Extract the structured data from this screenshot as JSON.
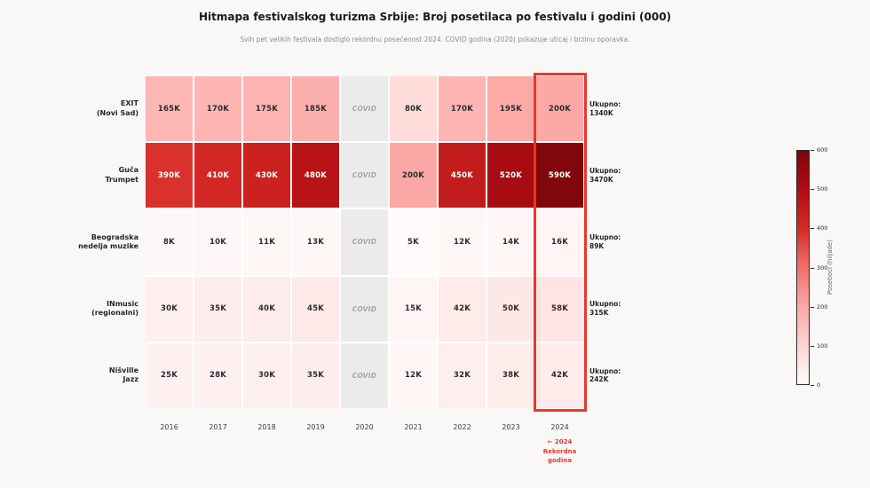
{
  "title": "Hitmapa festivalskog turizma Srbije: Broj posetilaca po festivalu i godini (000)",
  "subtitle": "Svih pet velikih festivala dostiglo rekordnu posećenost 2024. COVID godina (2020) pokazuje uticaj i brzinu oporavka.",
  "chart_data": {
    "type": "heatmap",
    "x_labels": [
      "2016",
      "2017",
      "2018",
      "2019",
      "2020",
      "2021",
      "2022",
      "2023",
      "2024"
    ],
    "value_suffix": "K",
    "covid_year": "2020",
    "covid_label": "COVID",
    "rows": [
      {
        "label": "EXIT\n(Novi Sad)",
        "values": [
          165,
          170,
          175,
          185,
          null,
          80,
          170,
          195,
          200
        ],
        "total": "Ukupno:\n1340K"
      },
      {
        "label": "Guča\nTrumpet",
        "values": [
          390,
          410,
          430,
          480,
          null,
          200,
          450,
          520,
          590
        ],
        "total": "Ukupno:\n3470K"
      },
      {
        "label": "Beogradska\nnedelja muzike",
        "values": [
          8,
          10,
          11,
          13,
          null,
          5,
          12,
          14,
          16
        ],
        "total": "Ukupno:\n89K"
      },
      {
        "label": "INmusic\n(regionalni)",
        "values": [
          30,
          35,
          40,
          45,
          null,
          15,
          42,
          50,
          58
        ],
        "total": "Ukupno:\n315K"
      },
      {
        "label": "Nišville\nJazz",
        "values": [
          25,
          28,
          30,
          35,
          null,
          12,
          32,
          38,
          42
        ],
        "total": "Ukupno:\n242K"
      }
    ],
    "highlight": {
      "column": "2024",
      "annotation": "← 2024\nRekordna\ngodina",
      "color": "#e5392e"
    },
    "colorbar": {
      "label": "Posetioci (hiljade)",
      "min": 0,
      "max": 600,
      "ticks": [
        0,
        100,
        200,
        300,
        400,
        500,
        600
      ]
    },
    "colors": {
      "covid_cell": "#ebebeb",
      "covid_text": "#a6a6a6",
      "cell_text_dark": "#2d2d2d",
      "cell_text_light": "#ffffff",
      "colormap_stops": [
        [
          0,
          "#fffbfb"
        ],
        [
          100,
          "#fdd4d2"
        ],
        [
          200,
          "#fba8a6"
        ],
        [
          300,
          "#f2706a"
        ],
        [
          400,
          "#d62b26"
        ],
        [
          500,
          "#b00d12"
        ],
        [
          600,
          "#7d060c"
        ]
      ]
    }
  }
}
